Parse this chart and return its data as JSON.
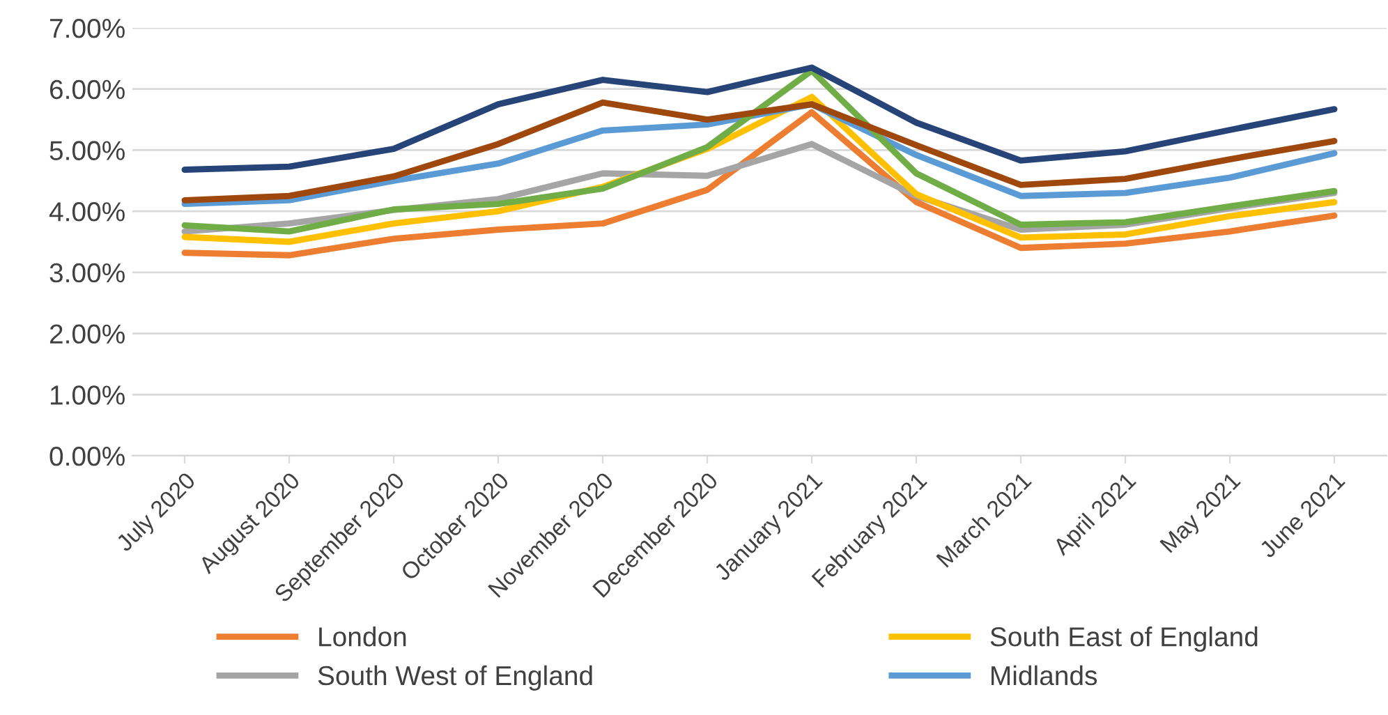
{
  "chart_data": {
    "type": "line",
    "categories": [
      "July 2020",
      "August 2020",
      "September 2020",
      "October 2020",
      "November 2020",
      "December 2020",
      "January 2021",
      "February 2021",
      "March 2021",
      "April 2021",
      "May 2021",
      "June 2021"
    ],
    "series": [
      {
        "name": "London",
        "color": "#ed7d31",
        "values": [
          3.32,
          3.28,
          3.55,
          3.7,
          3.8,
          4.35,
          5.62,
          4.15,
          3.4,
          3.47,
          3.67,
          3.93
        ]
      },
      {
        "name": "South West of England",
        "color": "#a5a5a5",
        "values": [
          3.67,
          3.8,
          4.02,
          4.2,
          4.62,
          4.58,
          5.1,
          4.25,
          3.7,
          3.78,
          4.05,
          4.3
        ]
      },
      {
        "name": "South East of England",
        "color": "#ffc000",
        "values": [
          3.58,
          3.5,
          3.8,
          4.0,
          4.4,
          5.02,
          5.87,
          4.28,
          3.57,
          3.62,
          3.92,
          4.15
        ]
      },
      {
        "name": "Midlands",
        "color": "#5b9bd5",
        "values": [
          4.12,
          4.18,
          4.5,
          4.78,
          5.32,
          5.42,
          5.75,
          4.92,
          4.25,
          4.3,
          4.55,
          4.95
        ]
      },
      {
        "color": "#70ad47",
        "values": [
          3.77,
          3.67,
          4.03,
          4.12,
          4.37,
          5.05,
          6.3,
          4.62,
          3.78,
          3.82,
          4.08,
          4.33
        ]
      },
      {
        "color": "#264478",
        "values": [
          4.68,
          4.73,
          5.02,
          5.75,
          6.15,
          5.95,
          6.35,
          5.45,
          4.83,
          4.98,
          5.33,
          5.67
        ]
      },
      {
        "color": "#9e480e",
        "values": [
          4.18,
          4.25,
          4.57,
          5.1,
          5.78,
          5.5,
          5.75,
          5.08,
          4.43,
          4.53,
          4.85,
          5.15
        ]
      }
    ],
    "ylim": [
      0,
      7
    ],
    "yticks": [
      {
        "value": 0,
        "label": "0.00%"
      },
      {
        "value": 1,
        "label": "1.00%"
      },
      {
        "value": 2,
        "label": "2.00%"
      },
      {
        "value": 3,
        "label": "3.00%"
      },
      {
        "value": 4,
        "label": "4.00%"
      },
      {
        "value": 5,
        "label": "5.00%"
      },
      {
        "value": 6,
        "label": "6.00%"
      },
      {
        "value": 7,
        "label": "7.00%"
      }
    ],
    "grid": "y",
    "legend": "bottom",
    "marker": "none",
    "line_style": "solid"
  }
}
